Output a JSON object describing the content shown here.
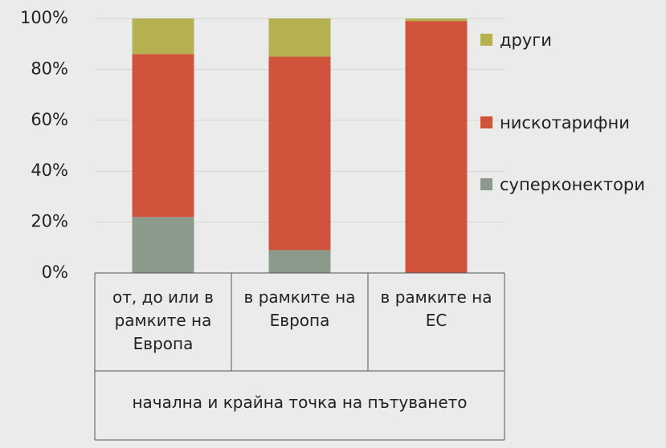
{
  "chart_data": {
    "type": "stacked_bar",
    "categories": [
      "от, до или в рамките на Европа",
      "в рамките на Европа",
      "в рамките на ЕС"
    ],
    "x_label": "начална и крайна точка на пътуването",
    "series": [
      {
        "name": "суперконектори",
        "color": "#8c9a8c",
        "values": [
          22,
          9,
          0
        ]
      },
      {
        "name": "нискотарифни",
        "color": "#d0533c",
        "values": [
          64,
          76,
          99
        ]
      },
      {
        "name": "други",
        "color": "#b5b050",
        "values": [
          14,
          15,
          1
        ]
      }
    ],
    "ylim": [
      0,
      100
    ],
    "yticks": [
      {
        "value": 0,
        "label": "0%"
      },
      {
        "value": 20,
        "label": "20%"
      },
      {
        "value": 40,
        "label": "40%"
      },
      {
        "value": 60,
        "label": "60%"
      },
      {
        "value": 80,
        "label": "80%"
      },
      {
        "value": 100,
        "label": "100%"
      }
    ],
    "grid": true,
    "legend": "right"
  }
}
